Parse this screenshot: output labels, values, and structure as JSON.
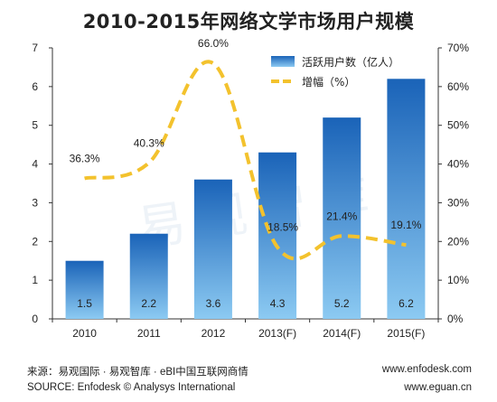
{
  "title": "2010-2015年网络文学市场用户规模",
  "watermark": "易观智库",
  "chart_data": {
    "type": "bar",
    "categories": [
      "2010",
      "2011",
      "2012",
      "2013(F)",
      "2014(F)",
      "2015(F)"
    ],
    "series": [
      {
        "name": "活跃用户数（亿人）",
        "type": "bar",
        "axis": "left",
        "values": [
          1.5,
          2.2,
          3.6,
          4.3,
          5.2,
          6.2
        ],
        "labels": [
          "1.5",
          "2.2",
          "3.6",
          "4.3",
          "5.2",
          "6.2"
        ]
      },
      {
        "name": "增幅（%）",
        "type": "line",
        "axis": "right",
        "values": [
          36.3,
          40.3,
          66.0,
          18.5,
          21.4,
          19.1
        ],
        "labels": [
          "36.3%",
          "40.3%",
          "66.0%",
          "18.5%",
          "21.4%",
          "19.1%"
        ]
      }
    ],
    "y_left": {
      "ylim": [
        0,
        7
      ],
      "ticks": [
        "0",
        "1",
        "2",
        "3",
        "4",
        "5",
        "6",
        "7"
      ]
    },
    "y_right": {
      "ylim": [
        0,
        70
      ],
      "ticks": [
        "0%",
        "10%",
        "20%",
        "30%",
        "40%",
        "50%",
        "60%",
        "70%"
      ]
    },
    "legend_position": "top-right",
    "grid": false,
    "colors": {
      "bar_top": "#1a63b8",
      "bar_bottom": "#8ccaf2",
      "line": "#f3c22d",
      "axis": "#333333"
    }
  },
  "footer": {
    "source_cn": "来源：易观国际 · 易观智库 · eBI中国互联网商情",
    "source_en": "SOURCE: Enfodesk © Analysys International",
    "url1": "www.enfodesk.com",
    "url2": "www.eguan.cn"
  }
}
